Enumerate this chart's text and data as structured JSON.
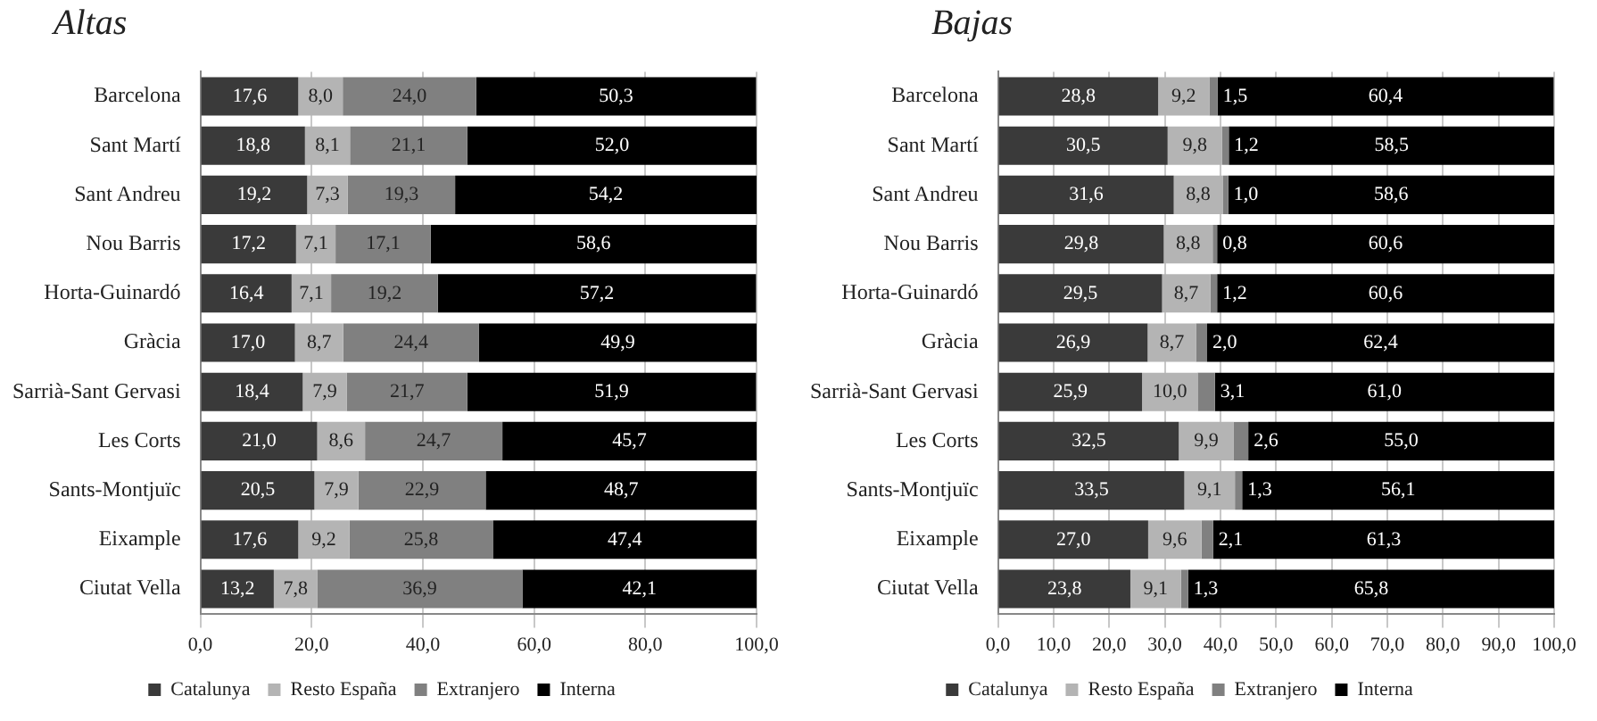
{
  "chart_data": [
    {
      "type": "bar",
      "title": "Altas",
      "orientation": "horizontal",
      "stacked": true,
      "categories": [
        "Barcelona",
        "Sant Martí",
        "Sant Andreu",
        "Nou Barris",
        "Horta-Guinardó",
        "Gràcia",
        "Sarrià-Sant Gervasi",
        "Les Corts",
        "Sants-Montjuïc",
        "Eixample",
        "Ciutat Vella"
      ],
      "series": [
        {
          "name": "Catalunya",
          "color": "#3a3a3a",
          "values": [
            17.6,
            18.8,
            19.2,
            17.2,
            16.4,
            17.0,
            18.4,
            21.0,
            20.5,
            17.6,
            13.2
          ],
          "value_labels": [
            "17,6",
            "18,8",
            "19,2",
            "17,2",
            "16,4",
            "17,0",
            "18,4",
            "21,0",
            "20,5",
            "17,6",
            "13,2"
          ]
        },
        {
          "name": "Resto España",
          "color": "#b4b4b4",
          "values": [
            8.0,
            8.1,
            7.3,
            7.1,
            7.1,
            8.7,
            7.9,
            8.6,
            7.9,
            9.2,
            7.8
          ],
          "value_labels": [
            "8,0",
            "8,1",
            "7,3",
            "7,1",
            "7,1",
            "8,7",
            "7,9",
            "8,6",
            "7,9",
            "9,2",
            "7,8"
          ]
        },
        {
          "name": "Extranjero",
          "color": "#808080",
          "values": [
            24.0,
            21.1,
            19.3,
            17.1,
            19.2,
            24.4,
            21.7,
            24.7,
            22.9,
            25.8,
            36.9
          ],
          "value_labels": [
            "24,0",
            "21,1",
            "19,3",
            "17,1",
            "19,2",
            "24,4",
            "21,7",
            "24,7",
            "22,9",
            "25,8",
            "36,9"
          ]
        },
        {
          "name": "Interna",
          "color": "#000000",
          "values": [
            50.3,
            52.0,
            54.2,
            58.6,
            57.2,
            49.9,
            51.9,
            45.7,
            48.7,
            47.4,
            42.1
          ],
          "value_labels": [
            "50,3",
            "52,0",
            "54,2",
            "58,6",
            "57,2",
            "49,9",
            "51,9",
            "45,7",
            "48,7",
            "47,4",
            "42,1"
          ]
        }
      ],
      "xlim": [
        0,
        100
      ],
      "xticks": [
        {
          "value": 0,
          "label": "0,0"
        },
        {
          "value": 20,
          "label": "20,0"
        },
        {
          "value": 40,
          "label": "40,0"
        },
        {
          "value": 60,
          "label": "60,0"
        },
        {
          "value": 80,
          "label": "80,0"
        },
        {
          "value": 100,
          "label": "100,0"
        }
      ],
      "grid": "x",
      "legend": "bottom"
    },
    {
      "type": "bar",
      "title": "Bajas",
      "orientation": "horizontal",
      "stacked": true,
      "categories": [
        "Barcelona",
        "Sant Martí",
        "Sant Andreu",
        "Nou Barris",
        "Horta-Guinardó",
        "Gràcia",
        "Sarrià-Sant Gervasi",
        "Les Corts",
        "Sants-Montjuïc",
        "Eixample",
        "Ciutat Vella"
      ],
      "series": [
        {
          "name": "Catalunya",
          "color": "#3a3a3a",
          "values": [
            28.8,
            30.5,
            31.6,
            29.8,
            29.5,
            26.9,
            25.9,
            32.5,
            33.5,
            27.0,
            23.8
          ],
          "value_labels": [
            "28,8",
            "30,5",
            "31,6",
            "29,8",
            "29,5",
            "26,9",
            "25,9",
            "32,5",
            "33,5",
            "27,0",
            "23,8"
          ]
        },
        {
          "name": "Resto España",
          "color": "#b4b4b4",
          "values": [
            9.2,
            9.8,
            8.8,
            8.8,
            8.7,
            8.7,
            10.0,
            9.9,
            9.1,
            9.6,
            9.1
          ],
          "value_labels": [
            "9,2",
            "9,8",
            "8,8",
            "8,8",
            "8,7",
            "8,7",
            "10,0",
            "9,9",
            "9,1",
            "9,6",
            "9,1"
          ]
        },
        {
          "name": "Extranjero",
          "color": "#808080",
          "values": [
            1.5,
            1.2,
            1.0,
            0.8,
            1.2,
            2.0,
            3.1,
            2.6,
            1.3,
            2.1,
            1.3
          ],
          "value_labels": [
            "1,5",
            "1,2",
            "1,0",
            "0,8",
            "1,2",
            "2,0",
            "3,1",
            "2,6",
            "1,3",
            "2,1",
            "1,3"
          ]
        },
        {
          "name": "Interna",
          "color": "#000000",
          "values": [
            60.4,
            58.5,
            58.6,
            60.6,
            60.6,
            62.4,
            61.0,
            55.0,
            56.1,
            61.3,
            65.8
          ],
          "value_labels": [
            "60,4",
            "58,5",
            "58,6",
            "60,6",
            "60,6",
            "62,4",
            "61,0",
            "55,0",
            "56,1",
            "61,3",
            "65,8"
          ]
        }
      ],
      "xlim": [
        0,
        100
      ],
      "xticks": [
        {
          "value": 0,
          "label": "0,0"
        },
        {
          "value": 10,
          "label": "10,0"
        },
        {
          "value": 20,
          "label": "20,0"
        },
        {
          "value": 30,
          "label": "30,0"
        },
        {
          "value": 40,
          "label": "40,0"
        },
        {
          "value": 50,
          "label": "50,0"
        },
        {
          "value": 60,
          "label": "60,0"
        },
        {
          "value": 70,
          "label": "70,0"
        },
        {
          "value": 80,
          "label": "80,0"
        },
        {
          "value": 90,
          "label": "90,0"
        },
        {
          "value": 100,
          "label": "100,0"
        }
      ],
      "grid": "x",
      "legend": "bottom"
    }
  ]
}
